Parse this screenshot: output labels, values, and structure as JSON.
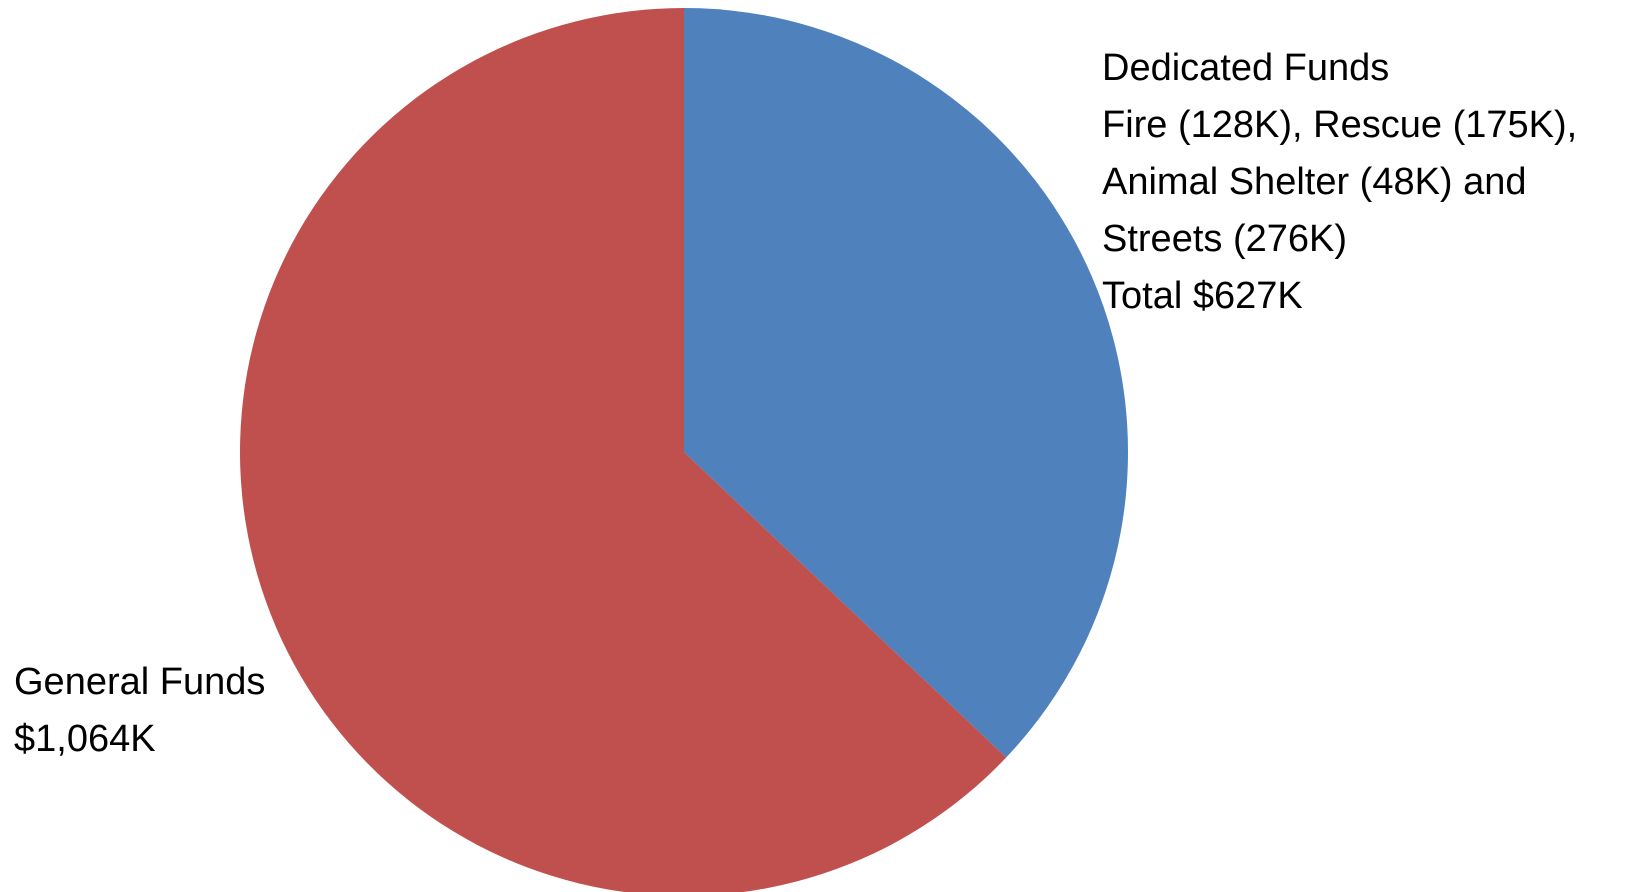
{
  "chart_data": {
    "type": "pie",
    "title": "",
    "start_angle_deg": 0,
    "direction": "clockwise",
    "slices": [
      {
        "name": "Dedicated Funds",
        "value": 627,
        "color": "#4F81BD",
        "label_lines": [
          "Dedicated Funds",
          "Fire (128K), Rescue (175K),",
          " Animal Shelter (48K) and",
          " Streets (276K)",
          "Total $627K"
        ],
        "label_position": "top-right"
      },
      {
        "name": "General Funds",
        "value": 1064,
        "color": "#C0504D",
        "label_lines": [
          "General Funds",
          "$1,064K"
        ],
        "label_position": "bottom-left"
      }
    ],
    "legend": "none",
    "grid": false
  }
}
